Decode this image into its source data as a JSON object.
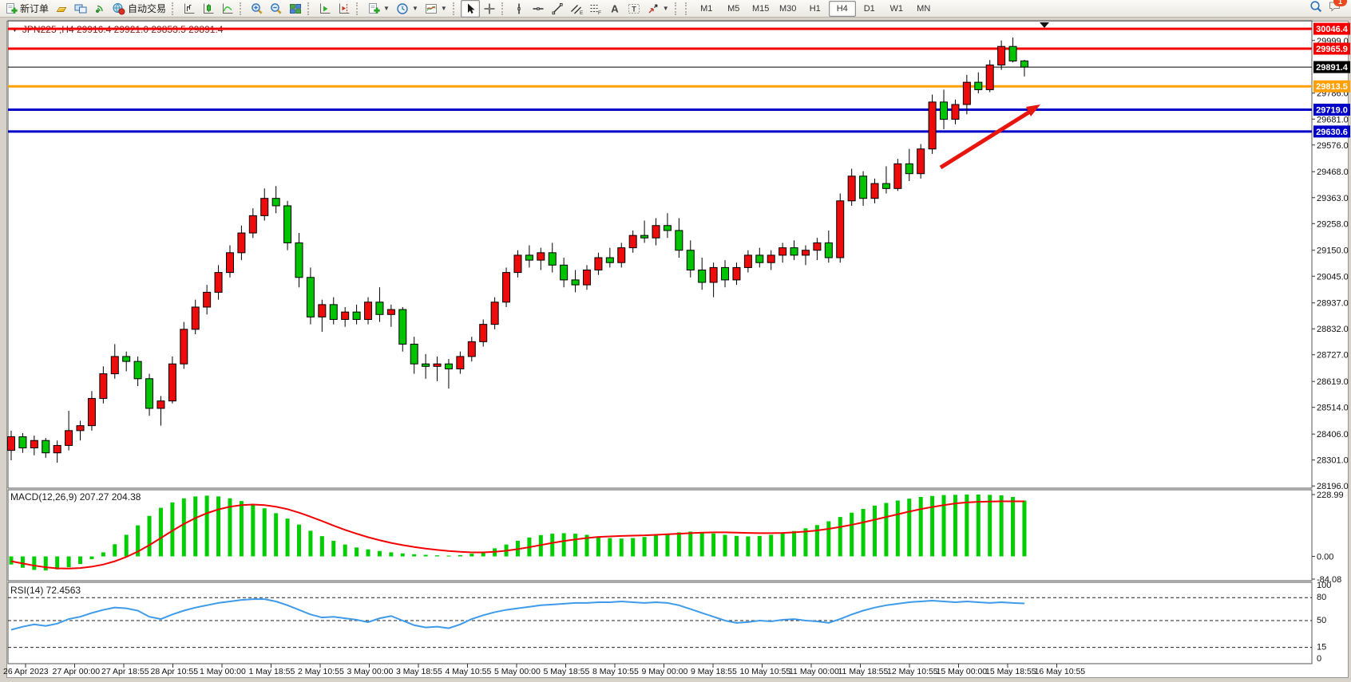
{
  "toolbar": {
    "buttons": [
      {
        "name": "new-order",
        "icon": "doc-plus",
        "label": "新订单"
      },
      {
        "name": "market-watch",
        "icon": "gold-bar"
      },
      {
        "name": "data-window",
        "icon": "monitors"
      },
      {
        "name": "navigator",
        "icon": "signal"
      },
      {
        "name": "autotrading",
        "icon": "globe-play",
        "label": "自动交易"
      },
      {
        "sep": true
      },
      {
        "name": "bar-chart-mode",
        "icon": "bar-chart"
      },
      {
        "name": "candlestick-mode",
        "icon": "candles"
      },
      {
        "name": "line-chart-mode",
        "icon": "line-chart"
      },
      {
        "sep": true
      },
      {
        "name": "zoom-in",
        "icon": "zoom-in"
      },
      {
        "name": "zoom-out",
        "icon": "zoom-out"
      },
      {
        "name": "tile-windows",
        "icon": "tile"
      },
      {
        "sep": true
      },
      {
        "name": "auto-scroll",
        "icon": "autoscroll"
      },
      {
        "name": "chart-shift",
        "icon": "chartshift"
      },
      {
        "sep": true
      },
      {
        "name": "indicators",
        "icon": "doc-plus",
        "caret": true
      },
      {
        "name": "periods",
        "icon": "clock",
        "caret": true
      },
      {
        "name": "templates",
        "icon": "template-chart",
        "caret": true
      },
      {
        "sep": true
      },
      {
        "name": "cursor",
        "icon": "cursor",
        "active": true
      },
      {
        "name": "crosshair",
        "icon": "crosshair"
      },
      {
        "sep": true
      },
      {
        "name": "vertical-line",
        "icon": "vline"
      },
      {
        "name": "horizontal-line",
        "icon": "hline"
      },
      {
        "name": "trendline",
        "icon": "tline"
      },
      {
        "name": "equidistant-channel",
        "icon": "channel"
      },
      {
        "name": "fibonacci",
        "icon": "fibo"
      },
      {
        "name": "text",
        "icon": "textA"
      },
      {
        "name": "text-label",
        "icon": "textT"
      },
      {
        "name": "arrows",
        "icon": "arrows",
        "caret": true
      },
      {
        "sep": true
      }
    ],
    "timeframes": [
      "M1",
      "M5",
      "M15",
      "M30",
      "H1",
      "H4",
      "D1",
      "W1",
      "MN"
    ],
    "active_timeframe": "H4",
    "notification_badge": "1"
  },
  "chart_data": {
    "type": "candlestick",
    "symbol": "JPN225",
    "timeframe": "H4",
    "title": "JPN225 ,H4  29916.4 29921.0 29853.5 29891.4",
    "current_bar": {
      "open": 29916.4,
      "high": 29921.0,
      "low": 29853.5,
      "close": 29891.4
    },
    "up_color": "#ee0b0b",
    "down_color": "#00c400",
    "wick_color": "#000000",
    "price_axis": {
      "max": 30079,
      "min": 28187,
      "ticks": [
        29999.0,
        29786.0,
        29681.0,
        29576.0,
        29468.0,
        29363.0,
        29258.0,
        29150.0,
        29045.0,
        28937.0,
        28832.0,
        28727.0,
        28619.0,
        28514.0,
        28406.0,
        28301.0,
        28196.0
      ]
    },
    "hlines": [
      {
        "label": "30046.4",
        "price": 30046.4,
        "color": "#f50000",
        "width": 3
      },
      {
        "label": "29965.9",
        "price": 29965.9,
        "color": "#f50000",
        "width": 3
      },
      {
        "label": "29891.4",
        "price": 29891.4,
        "color": "#000000",
        "width": 1
      },
      {
        "label": "29813.5",
        "price": 29813.5,
        "color": "#ff9f00",
        "width": 3
      },
      {
        "label": "29719.0",
        "price": 29719.0,
        "color": "#0000c8",
        "width": 3
      },
      {
        "label": "29630.6",
        "price": 29630.6,
        "color": "#0000c8",
        "width": 3
      }
    ],
    "arrow": {
      "tail": [
        1178,
        210
      ],
      "tip": [
        1303,
        131
      ],
      "color": "#e8150d"
    },
    "time_labels": [
      "26 Apr 2023",
      "27 Apr 00:00",
      "27 Apr 18:55",
      "28 Apr 10:55",
      "1 May 00:00",
      "1 May 18:55",
      "2 May 10:55",
      "3 May 00:00",
      "3 May 18:55",
      "4 May 10:55",
      "5 May 00:00",
      "5 May 18:55",
      "8 May 10:55",
      "9 May 00:00",
      "9 May 18:55",
      "10 May 10:55",
      "11 May 00:00",
      "11 May 18:55",
      "12 May 10:55",
      "15 May 00:00",
      "15 May 18:55",
      "16 May 10:55"
    ],
    "candles": [
      [
        28340,
        28420,
        28300,
        28395
      ],
      [
        28395,
        28410,
        28330,
        28350
      ],
      [
        28350,
        28400,
        28320,
        28380
      ],
      [
        28380,
        28390,
        28310,
        28330
      ],
      [
        28330,
        28380,
        28290,
        28360
      ],
      [
        28360,
        28500,
        28340,
        28420
      ],
      [
        28420,
        28460,
        28380,
        28440
      ],
      [
        28440,
        28580,
        28420,
        28550
      ],
      [
        28550,
        28680,
        28530,
        28650
      ],
      [
        28650,
        28770,
        28630,
        28720
      ],
      [
        28720,
        28740,
        28660,
        28700
      ],
      [
        28700,
        28720,
        28600,
        28630
      ],
      [
        28630,
        28650,
        28480,
        28510
      ],
      [
        28510,
        28560,
        28440,
        28540
      ],
      [
        28540,
        28720,
        28530,
        28690
      ],
      [
        28690,
        28860,
        28670,
        28830
      ],
      [
        28830,
        28950,
        28810,
        28920
      ],
      [
        28920,
        29010,
        28890,
        28980
      ],
      [
        28980,
        29090,
        28950,
        29060
      ],
      [
        29060,
        29170,
        29040,
        29140
      ],
      [
        29140,
        29250,
        29110,
        29220
      ],
      [
        29220,
        29320,
        29200,
        29290
      ],
      [
        29290,
        29400,
        29270,
        29360
      ],
      [
        29360,
        29410,
        29300,
        29330
      ],
      [
        29330,
        29350,
        29150,
        29180
      ],
      [
        29180,
        29220,
        29000,
        29040
      ],
      [
        29040,
        29080,
        28850,
        28880
      ],
      [
        28880,
        28950,
        28820,
        28930
      ],
      [
        28930,
        28960,
        28850,
        28870
      ],
      [
        28870,
        28920,
        28840,
        28900
      ],
      [
        28900,
        28930,
        28850,
        28870
      ],
      [
        28870,
        28960,
        28850,
        28940
      ],
      [
        28940,
        29000,
        28860,
        28890
      ],
      [
        28890,
        28930,
        28840,
        28910
      ],
      [
        28910,
        28920,
        28740,
        28770
      ],
      [
        28770,
        28800,
        28650,
        28690
      ],
      [
        28690,
        28730,
        28630,
        28680
      ],
      [
        28680,
        28720,
        28620,
        28690
      ],
      [
        28690,
        28710,
        28590,
        28670
      ],
      [
        28670,
        28740,
        28650,
        28720
      ],
      [
        28720,
        28800,
        28700,
        28780
      ],
      [
        28780,
        28870,
        28760,
        28850
      ],
      [
        28850,
        28960,
        28830,
        28940
      ],
      [
        28940,
        29080,
        28920,
        29060
      ],
      [
        29060,
        29150,
        29040,
        29130
      ],
      [
        29130,
        29170,
        29080,
        29110
      ],
      [
        29110,
        29160,
        29070,
        29140
      ],
      [
        29140,
        29180,
        29060,
        29090
      ],
      [
        29090,
        29120,
        29000,
        29030
      ],
      [
        29030,
        29070,
        28980,
        29010
      ],
      [
        29010,
        29090,
        28990,
        29070
      ],
      [
        29070,
        29140,
        29050,
        29120
      ],
      [
        29120,
        29160,
        29080,
        29100
      ],
      [
        29100,
        29180,
        29080,
        29160
      ],
      [
        29160,
        29230,
        29140,
        29210
      ],
      [
        29210,
        29270,
        29180,
        29200
      ],
      [
        29200,
        29280,
        29170,
        29250
      ],
      [
        29250,
        29300,
        29200,
        29230
      ],
      [
        29230,
        29280,
        29120,
        29150
      ],
      [
        29150,
        29190,
        29040,
        29070
      ],
      [
        29070,
        29120,
        28990,
        29020
      ],
      [
        29020,
        29100,
        28960,
        29080
      ],
      [
        29080,
        29110,
        29000,
        29030
      ],
      [
        29030,
        29100,
        29010,
        29080
      ],
      [
        29080,
        29150,
        29060,
        29130
      ],
      [
        29130,
        29160,
        29080,
        29100
      ],
      [
        29100,
        29150,
        29070,
        29130
      ],
      [
        29130,
        29180,
        29100,
        29160
      ],
      [
        29160,
        29190,
        29110,
        29130
      ],
      [
        29130,
        29170,
        29090,
        29150
      ],
      [
        29150,
        29200,
        29110,
        29180
      ],
      [
        29180,
        29230,
        29100,
        29120
      ],
      [
        29120,
        29380,
        29100,
        29350
      ],
      [
        29350,
        29480,
        29330,
        29450
      ],
      [
        29450,
        29470,
        29330,
        29360
      ],
      [
        29360,
        29440,
        29340,
        29420
      ],
      [
        29420,
        29490,
        29380,
        29400
      ],
      [
        29400,
        29520,
        29390,
        29500
      ],
      [
        29500,
        29560,
        29430,
        29460
      ],
      [
        29460,
        29580,
        29440,
        29560
      ],
      [
        29560,
        29780,
        29540,
        29750
      ],
      [
        29750,
        29800,
        29640,
        29680
      ],
      [
        29680,
        29760,
        29660,
        29740
      ],
      [
        29740,
        29860,
        29700,
        29830
      ],
      [
        29830,
        29870,
        29785,
        29800
      ],
      [
        29800,
        29920,
        29790,
        29900
      ],
      [
        29900,
        29999,
        29880,
        29975
      ],
      [
        29975,
        30011,
        29910,
        29916
      ],
      [
        29916.4,
        29921.0,
        29853.5,
        29891.4
      ]
    ],
    "indicators": [
      {
        "name": "MACD",
        "label": "MACD(12,26,9) 207.27 204.38",
        "main_value": 207.27,
        "signal_value": 204.38,
        "axis_labels": [
          {
            "text": "228.99",
            "value": 228.99
          },
          {
            "text": "0.00",
            "value": 0
          },
          {
            "text": "-84.08",
            "value": -84.08
          }
        ],
        "max": 229,
        "min": -84,
        "histogram_color": "#00ce00",
        "signal_color": "#f50000",
        "histogram": [
          -30,
          -42,
          -50,
          -52,
          -48,
          -40,
          -28,
          -10,
          15,
          45,
          80,
          115,
          150,
          180,
          200,
          215,
          222,
          225,
          222,
          215,
          205,
          192,
          178,
          160,
          140,
          118,
          95,
          75,
          58,
          44,
          33,
          26,
          20,
          15,
          11,
          8,
          6,
          4,
          3,
          5,
          10,
          18,
          30,
          44,
          58,
          70,
          79,
          84,
          86,
          84,
          80,
          74,
          68,
          66,
          68,
          72,
          78,
          84,
          89,
          92,
          90,
          85,
          80,
          76,
          74,
          76,
          80,
          86,
          94,
          104,
          116,
          130,
          146,
          162,
          176,
          188,
          198,
          207,
          214,
          220,
          224,
          227,
          228,
          229,
          229,
          228,
          226,
          220,
          207
        ],
        "signal": [
          -18,
          -26,
          -34,
          -40,
          -44,
          -45,
          -43,
          -38,
          -30,
          -18,
          -2,
          18,
          42,
          68,
          95,
          120,
          142,
          160,
          174,
          184,
          190,
          192,
          190,
          184,
          175,
          162,
          147,
          131,
          114,
          98,
          84,
          71,
          60,
          50,
          42,
          35,
          29,
          24,
          20,
          17,
          15,
          15,
          17,
          21,
          27,
          34,
          42,
          50,
          57,
          63,
          68,
          72,
          74,
          76,
          77,
          78,
          80,
          82,
          84,
          86,
          88,
          89,
          89,
          88,
          87,
          86,
          86,
          87,
          89,
          92,
          96,
          102,
          109,
          117,
          126,
          136,
          146,
          156,
          166,
          175,
          183,
          190,
          196,
          200,
          202,
          203,
          204,
          204,
          204
        ]
      },
      {
        "name": "RSI",
        "label": "RSI(14) 72.4563",
        "value": 72.4563,
        "axis_labels": [
          {
            "text": "100",
            "value": 100
          },
          {
            "text": "80",
            "value": 80
          },
          {
            "text": "50",
            "value": 50
          },
          {
            "text": "15",
            "value": 15
          },
          {
            "text": "0",
            "value": 0
          }
        ],
        "levels": [
          80,
          50,
          15
        ],
        "max": 100,
        "min": 0,
        "color": "#3d9be9",
        "values": [
          38,
          42,
          45,
          43,
          46,
          52,
          55,
          60,
          64,
          67,
          66,
          63,
          55,
          52,
          58,
          63,
          67,
          70,
          73,
          75,
          77,
          78,
          78,
          75,
          70,
          64,
          58,
          54,
          55,
          53,
          51,
          48,
          53,
          56,
          50,
          44,
          41,
          42,
          40,
          45,
          52,
          57,
          61,
          64,
          66,
          68,
          70,
          71,
          72,
          73,
          73,
          74,
          74,
          75,
          74,
          73,
          74,
          73,
          70,
          65,
          60,
          55,
          50,
          47,
          48,
          50,
          49,
          51,
          52,
          50,
          49,
          47,
          52,
          58,
          63,
          67,
          70,
          72,
          74,
          75,
          76,
          75,
          74,
          75,
          74,
          73,
          74,
          73,
          72.46
        ]
      }
    ]
  }
}
